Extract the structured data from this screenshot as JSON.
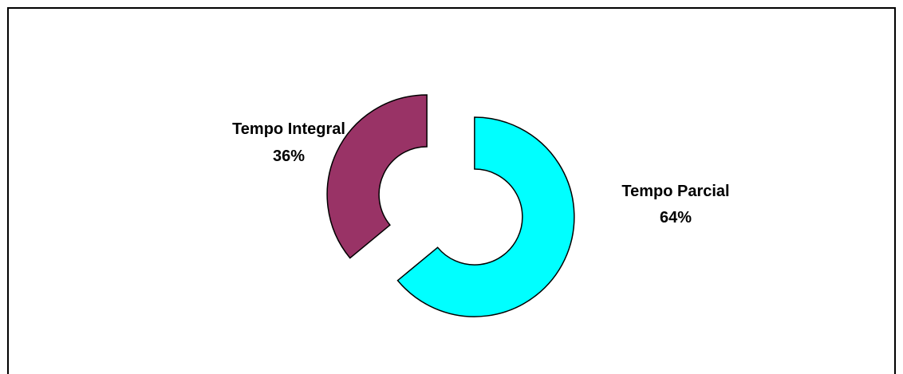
{
  "chart_data": {
    "type": "pie",
    "style": "exploded-donut",
    "categories": [
      "Tempo Parcial",
      "Tempo Integral"
    ],
    "values": [
      64,
      36
    ],
    "percent_labels": [
      "64%",
      "36%"
    ],
    "colors": [
      "#00FFFF",
      "#993366"
    ],
    "edge_color": "#000000",
    "legend": "none"
  }
}
